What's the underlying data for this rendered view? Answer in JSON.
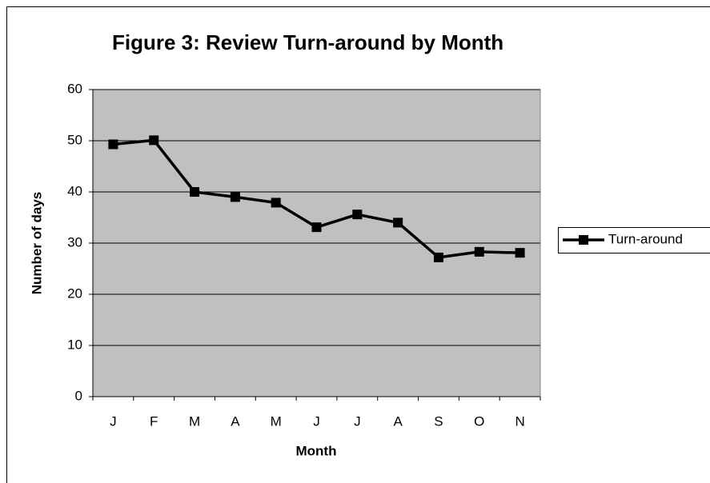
{
  "chart_data": {
    "type": "line",
    "title": "Figure 3: Review Turn-around by Month",
    "x_label": "Month",
    "y_label": "Number of days",
    "categories": [
      "J",
      "F",
      "M",
      "A",
      "M",
      "J",
      "J",
      "A",
      "S",
      "O",
      "N"
    ],
    "series": [
      {
        "name": "Turn-around",
        "color": "#000000",
        "values": [
          49.3,
          50.1,
          40,
          39,
          37.9,
          33.1,
          35.6,
          34,
          27.2,
          28.3,
          28.1
        ]
      }
    ],
    "ylim": [
      0,
      60
    ],
    "yticks": [
      0,
      10,
      20,
      30,
      40,
      50,
      60
    ],
    "grid": true,
    "plot_background": "#c0c0c0",
    "legend": "right"
  }
}
